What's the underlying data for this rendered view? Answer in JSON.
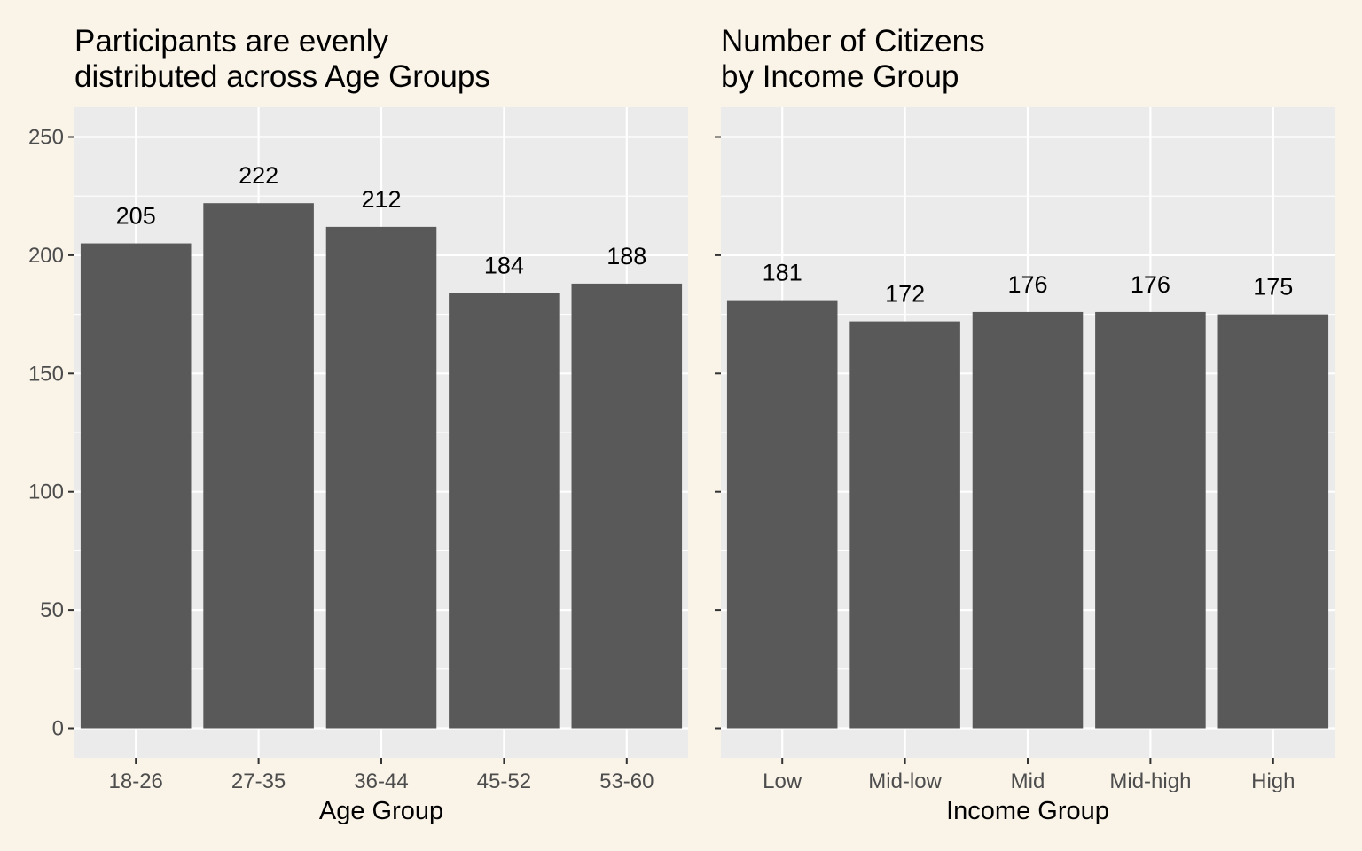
{
  "chart_data": [
    {
      "type": "bar",
      "title_lines": [
        "Participants are evenly",
        "distributed across Age Groups"
      ],
      "xlabel": "Age Group",
      "ylabel": "",
      "categories": [
        "18-26",
        "27-35",
        "36-44",
        "45-52",
        "53-60"
      ],
      "values": [
        205,
        222,
        212,
        184,
        188
      ],
      "data_labels": [
        "205",
        "222",
        "212",
        "184",
        "188"
      ],
      "ylim": [
        0,
        260
      ],
      "yticks": [
        0,
        50,
        100,
        150,
        200,
        250
      ],
      "ytick_labels": [
        "0",
        "50",
        "100",
        "150",
        "200",
        "250"
      ],
      "show_ytick_labels": true,
      "grid": true
    },
    {
      "type": "bar",
      "title_lines": [
        "Number of Citizens",
        "by Income Group"
      ],
      "xlabel": "Income Group",
      "ylabel": "",
      "categories": [
        "Low",
        "Mid-low",
        "Mid",
        "Mid-high",
        "High"
      ],
      "values": [
        181,
        172,
        176,
        176,
        175
      ],
      "data_labels": [
        "181",
        "172",
        "176",
        "176",
        "175"
      ],
      "ylim": [
        0,
        260
      ],
      "yticks": [
        0,
        50,
        100,
        150,
        200,
        250
      ],
      "ytick_labels": [],
      "show_ytick_labels": false,
      "grid": true
    }
  ],
  "colors": {
    "page_background": "#f9f3e8",
    "panel_background": "#ebebeb",
    "grid_major": "#ffffff",
    "bar_fill": "#595959",
    "tick_text": "#4d4d4d",
    "text": "#000000"
  }
}
